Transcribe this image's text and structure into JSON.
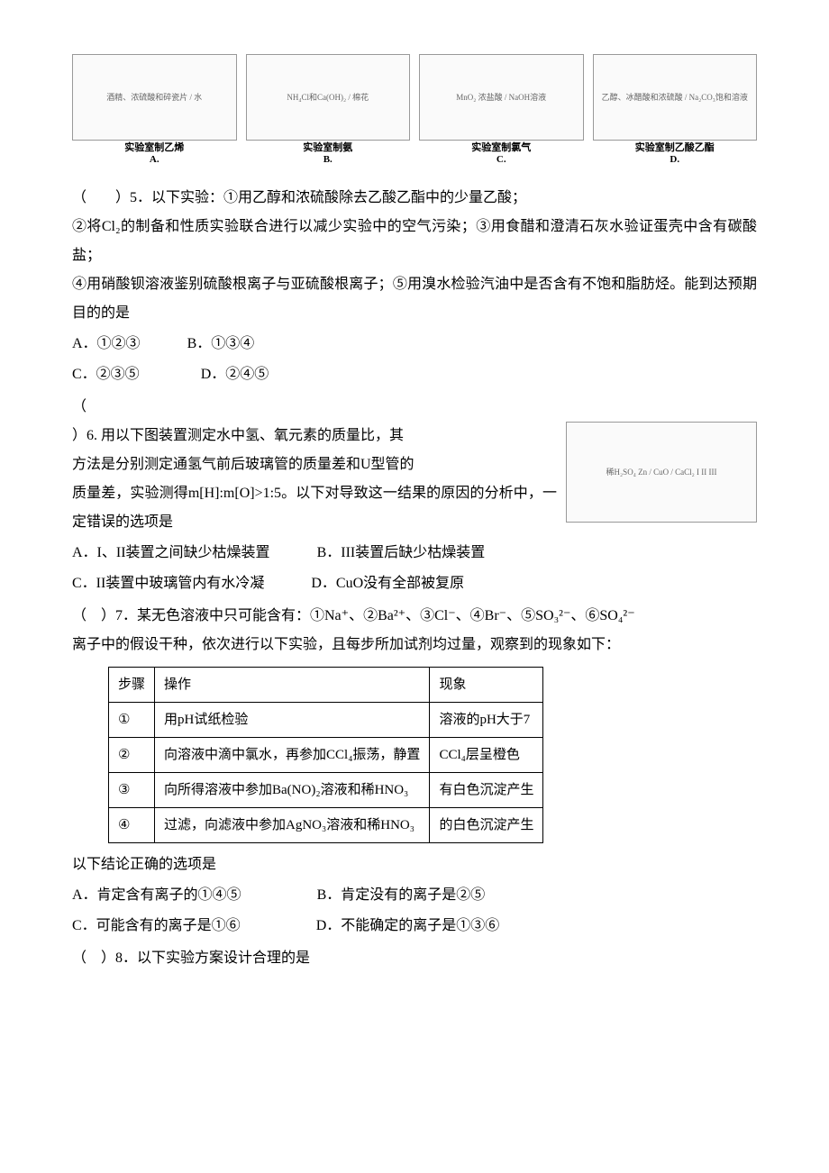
{
  "diagrams": {
    "a": {
      "hint": "酒精、浓硫酸和碎瓷片 / 水",
      "caption": "实验室制乙烯",
      "letter": "A."
    },
    "b": {
      "hint": "NH₄Cl和Ca(OH)₂ / 棉花",
      "caption": "实验室制氨",
      "letter": "B."
    },
    "c": {
      "hint": "MnO₂ 浓盐酸 / NaOH溶液",
      "caption": "实验室制氯气",
      "letter": "C."
    },
    "d": {
      "hint": "乙醇、冰醋酸和浓硫酸 / Na₂CO₃饱和溶液",
      "caption": "实验室制乙酸乙酯",
      "letter": "D."
    }
  },
  "q5": {
    "prefix": "（　　）5．以下实验：①用乙醇和浓硫酸除去乙酸乙酯中的少量乙酸；",
    "line2": "②将Cl₂的制备和性质实验联合进行以减少实验中的空气污染；③用食醋和澄清石灰水验证蛋壳中含有碳酸盐；",
    "line3": "④用硝酸钡溶液鉴别硫酸根离子与亚硫酸根离子；⑤用溴水检验汽油中是否含有不饱和脂肪烃。能到达预期目的的是",
    "optA": "A．①②③",
    "optB": "B．①③④",
    "optC": "C．②③⑤",
    "optD": "D．②④⑤"
  },
  "q6": {
    "bracket": "（",
    "diagram_hint": "稀H₂SO₄ Zn / CuO / CaCl₂  I  II  III",
    "line1": "）6. 用以下图装置测定水中氢、氧元素的质量比，其",
    "line2": "方法是分别测定通氢气前后玻璃管的质量差和U型管的",
    "line3": "质量差，实验测得m[H]:m[O]>1:5。以下对导致这一结果的原因的分析中，一定错误的选项是",
    "optA": "A．I、II装置之间缺少枯燥装置",
    "optB": "B．III装置后缺少枯燥装置",
    "optC": "C．II装置中玻璃管内有水冷凝",
    "optD": "D．CuO没有全部被复原"
  },
  "q7": {
    "line1": "（　）7．某无色溶液中只可能含有：①Na⁺、②Ba²⁺、③Cl⁻、④Br⁻、⑤SO₃²⁻、⑥SO₄²⁻",
    "line2": "离子中的假设干种，依次进行以下实验，且每步所加试剂均过量，观察到的现象如下：",
    "th1": "步骤",
    "th2": "操作",
    "th3": "现象",
    "r1c1": "①",
    "r1c2": "用pH试纸检验",
    "r1c3": "溶液的pH大于7",
    "r2c1": "②",
    "r2c2": "向溶液中滴中氯水，再参加CCl₄振荡，静置",
    "r2c3": "CCl₄层呈橙色",
    "r3c1": "③",
    "r3c2": "向所得溶液中参加Ba(NO)₂溶液和稀HNO₃",
    "r3c3": "有白色沉淀产生",
    "r4c1": "④",
    "r4c2": "过滤，向滤液中参加AgNO₃溶液和稀HNO₃",
    "r4c3": "的白色沉淀产生",
    "line3": "以下结论正确的选项是",
    "optA": "A．肯定含有离子的①④⑤",
    "optB": "B．肯定没有的离子是②⑤",
    "optC": "C．可能含有的离子是①⑥",
    "optD": "D．不能确定的离子是①③⑥"
  },
  "q8": {
    "line": "（　）8．以下实验方案设计合理的是"
  },
  "style": {
    "col_widths": {
      "c1": "60px",
      "c2": "360px",
      "c3": "160px"
    }
  }
}
